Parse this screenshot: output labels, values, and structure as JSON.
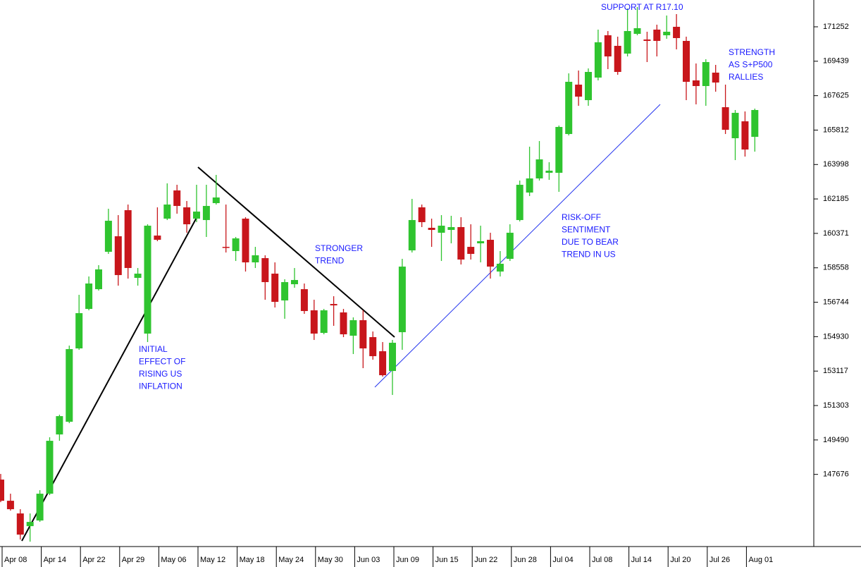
{
  "chart_data": {
    "type": "candlestick",
    "categories": [
      "Apr 08",
      null,
      null,
      null,
      "Apr 14",
      null,
      null,
      null,
      "Apr 22",
      null,
      null,
      null,
      "Apr 29",
      null,
      null,
      null,
      "May 06",
      null,
      null,
      null,
      "May 12",
      null,
      null,
      null,
      "May 18",
      null,
      null,
      null,
      "May 24",
      null,
      null,
      null,
      "May 30",
      null,
      null,
      null,
      "Jun 03",
      null,
      null,
      null,
      "Jun 09",
      null,
      null,
      null,
      "Jun 15",
      null,
      null,
      null,
      "Jun 22",
      null,
      null,
      null,
      "Jun 28",
      null,
      null,
      null,
      "Jul 04",
      null,
      null,
      null,
      "Jul 08",
      null,
      null,
      null,
      "Jul 14",
      null,
      null,
      null,
      "Jul 20",
      null,
      null,
      null,
      "Jul 26",
      null,
      null,
      null,
      "Aug 01",
      null
    ],
    "open": [
      147402,
      146287,
      145619,
      144950,
      145247,
      146659,
      149780,
      150448,
      154312,
      156392,
      157432,
      159401,
      160219,
      161593,
      158027,
      155092,
      160256,
      161147,
      162633,
      161742,
      161147,
      161073,
      161965,
      159661,
      159439,
      161147,
      158844,
      159067,
      158250,
      156838,
      157693,
      157432,
      156318,
      155129,
      156652,
      156207,
      154981,
      155798,
      154906,
      154163,
      153123,
      155166,
      159476,
      161742,
      160665,
      160404,
      160553,
      160702,
      159661,
      159847,
      160033,
      158361,
      159030,
      161073,
      162522,
      163265,
      163562,
      163562,
      165605,
      168206,
      167389,
      168577,
      170806,
      170249,
      169841,
      170881,
      170584,
      171104,
      170806,
      171252,
      170509,
      168429,
      168132,
      168838,
      167017,
      165383,
      166274,
      165457
    ],
    "high": [
      147699,
      146659,
      145842,
      145619,
      146845,
      149631,
      150820,
      154460,
      157135,
      158101,
      158696,
      161668,
      161333,
      161890,
      158547,
      160850,
      161742,
      163005,
      162931,
      162076,
      162931,
      162931,
      163451,
      161890,
      160182,
      161222,
      159661,
      159216,
      158844,
      157953,
      158547,
      157730,
      156875,
      156392,
      157061,
      156392,
      155946,
      156318,
      155203,
      154646,
      154758,
      159030,
      162188,
      161890,
      161147,
      161333,
      161296,
      161222,
      160850,
      160776,
      160404,
      159439,
      160850,
      163154,
      164937,
      165234,
      164119,
      166051,
      168800,
      168949,
      169060,
      171104,
      171029,
      170732,
      172218,
      172292,
      170992,
      171364,
      171847,
      171921,
      170732,
      169320,
      169543,
      169246,
      168206,
      166869,
      166794,
      166943
    ],
    "low": [
      146213,
      145767,
      144244,
      144133,
      145173,
      146585,
      149445,
      150374,
      154238,
      156318,
      157358,
      159290,
      157618,
      157990,
      157618,
      154646,
      159959,
      161073,
      161408,
      160404,
      160962,
      160182,
      161890,
      159364,
      158918,
      158361,
      158547,
      156875,
      156467,
      155872,
      157507,
      156132,
      154758,
      155055,
      155501,
      154906,
      154015,
      153272,
      153717,
      152826,
      151860,
      154238,
      159364,
      160702,
      159661,
      158918,
      159847,
      158733,
      158993,
      158844,
      157990,
      158101,
      158918,
      160999,
      162336,
      163154,
      163191,
      162559,
      165531,
      167091,
      167091,
      168429,
      169023,
      168726,
      169692,
      170806,
      169395,
      169692,
      170621,
      170063,
      167389,
      167166,
      167091,
      167834,
      165605,
      164231,
      164417,
      164677
    ],
    "close": [
      146287,
      145842,
      144504,
      145173,
      146659,
      149445,
      150745,
      154275,
      156169,
      157730,
      158473,
      161036,
      158175,
      158547,
      158250,
      160776,
      160033,
      161890,
      161816,
      160850,
      161519,
      161816,
      162262,
      159624,
      160107,
      158844,
      159216,
      157804,
      156764,
      157804,
      157915,
      156281,
      155092,
      156318,
      156578,
      155055,
      155798,
      154312,
      153903,
      152900,
      154609,
      158621,
      161073,
      160962,
      160553,
      160776,
      160702,
      158993,
      159290,
      159959,
      158621,
      158770,
      160404,
      162931,
      163265,
      164268,
      163674,
      165977,
      168355,
      167574,
      168875,
      170435,
      169692,
      168875,
      171029,
      171178,
      170509,
      170509,
      170992,
      170658,
      168355,
      168132,
      169395,
      168317,
      165828,
      166720,
      164788,
      166869
    ],
    "up_color": "#2fc42f",
    "down_color": "#c8161b",
    "ylim": [
      143875,
      172664
    ],
    "yticks": [
      171252,
      169439,
      167625,
      165812,
      163998,
      162185,
      160371,
      158558,
      156744,
      154930,
      153117,
      151303,
      149490,
      147676
    ],
    "annotations": [
      {
        "lines": [
          "INITIAL",
          "EFFECT OF",
          "RISING US",
          "INFLATION"
        ]
      },
      {
        "lines": [
          "STRONGER",
          "TREND"
        ]
      },
      {
        "lines": [
          "RISK-OFF",
          "SENTIMENT",
          "DUE TO BEAR",
          "TREND IN US"
        ]
      },
      {
        "lines": [
          "SUPPORT AT R17.10"
        ]
      },
      {
        "lines": [
          "STRENGTH",
          "AS S+P500",
          "RALLIES"
        ]
      }
    ]
  }
}
